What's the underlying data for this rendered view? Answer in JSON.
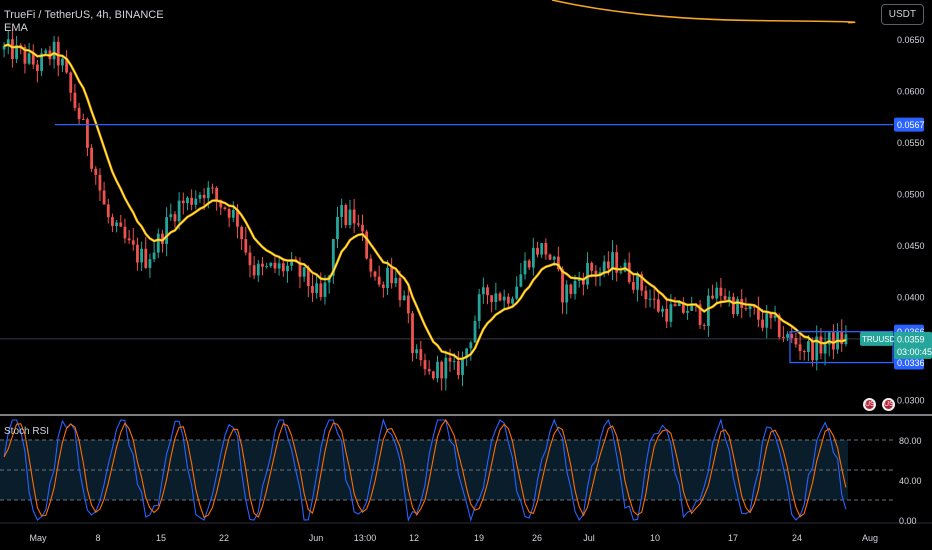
{
  "header": {
    "title": "TrueFi / TetherUS, 4h, BINANCE",
    "indicator": "EMA",
    "currency": "USDT",
    "flag1": "US",
    "flag2": "US"
  },
  "rsi_panel": {
    "title": "Stoch RSI"
  },
  "colors": {
    "up": "#26a69a",
    "down": "#ef5350",
    "ema": "#ffeb3b",
    "ema_long": "#f6a623",
    "level": "#2962ff",
    "last": "#26a69a",
    "k": "#2962ff",
    "d": "#ff6d00"
  },
  "chart_data": [
    {
      "type": "candlestick",
      "title": "TrueFi / TetherUS, 4h, BINANCE",
      "ylim": [
        0.0288,
        0.0688
      ],
      "y_ticks": [
        "0.0650",
        "0.0600",
        "0.0550",
        "0.0500",
        "0.0450",
        "0.0400",
        "0.0300"
      ],
      "x_ticks": [
        "May",
        "8",
        "15",
        "22",
        "Jun",
        "13:00",
        "12",
        "19",
        "26",
        "Jul",
        "10",
        "17",
        "24",
        "Aug"
      ],
      "close_path": [
        [
          0,
          0.064
        ],
        [
          2,
          0.0638
        ],
        [
          4,
          0.0636
        ],
        [
          6,
          0.0628
        ],
        [
          8,
          0.0624
        ],
        [
          10,
          0.0632
        ],
        [
          12,
          0.0637
        ],
        [
          14,
          0.0624
        ],
        [
          16,
          0.0596
        ],
        [
          18,
          0.0575
        ],
        [
          20,
          0.055
        ],
        [
          22,
          0.052
        ],
        [
          24,
          0.0487
        ],
        [
          26,
          0.0465
        ],
        [
          28,
          0.0459
        ],
        [
          30,
          0.0448
        ],
        [
          32,
          0.044
        ],
        [
          34,
          0.0437
        ],
        [
          36,
          0.0447
        ],
        [
          38,
          0.0462
        ],
        [
          40,
          0.0478
        ],
        [
          42,
          0.049
        ],
        [
          44,
          0.0492
        ],
        [
          46,
          0.0499
        ],
        [
          48,
          0.0504
        ],
        [
          50,
          0.0499
        ],
        [
          52,
          0.049
        ],
        [
          54,
          0.0485
        ],
        [
          56,
          0.0474
        ],
        [
          58,
          0.0446
        ],
        [
          60,
          0.0426
        ],
        [
          62,
          0.0424
        ],
        [
          64,
          0.0427
        ],
        [
          66,
          0.0428
        ],
        [
          68,
          0.0428
        ],
        [
          70,
          0.0425
        ],
        [
          72,
          0.0418
        ],
        [
          74,
          0.0408
        ],
        [
          76,
          0.0396
        ],
        [
          78,
          0.0419
        ],
        [
          80,
          0.0482
        ],
        [
          82,
          0.0476
        ],
        [
          84,
          0.0475
        ],
        [
          86,
          0.0456
        ],
        [
          88,
          0.043
        ],
        [
          90,
          0.0409
        ],
        [
          92,
          0.0428
        ],
        [
          94,
          0.0415
        ],
        [
          96,
          0.0395
        ],
        [
          98,
          0.0351
        ],
        [
          100,
          0.0328
        ],
        [
          102,
          0.0323
        ],
        [
          104,
          0.0329
        ],
        [
          106,
          0.0334
        ],
        [
          108,
          0.0327
        ],
        [
          110,
          0.0337
        ],
        [
          112,
          0.0364
        ],
        [
          114,
          0.0393
        ],
        [
          116,
          0.0404
        ],
        [
          118,
          0.0405
        ],
        [
          120,
          0.0398
        ],
        [
          122,
          0.0407
        ],
        [
          124,
          0.0422
        ],
        [
          126,
          0.0439
        ],
        [
          128,
          0.0447
        ],
        [
          130,
          0.0445
        ],
        [
          132,
          0.043
        ],
        [
          134,
          0.0404
        ],
        [
          136,
          0.0407
        ],
        [
          138,
          0.0417
        ],
        [
          140,
          0.0427
        ],
        [
          142,
          0.0424
        ],
        [
          144,
          0.0424
        ],
        [
          146,
          0.0434
        ],
        [
          148,
          0.0429
        ],
        [
          150,
          0.0422
        ],
        [
          152,
          0.0413
        ],
        [
          154,
          0.0404
        ],
        [
          156,
          0.0393
        ],
        [
          158,
          0.0386
        ],
        [
          160,
          0.0386
        ],
        [
          162,
          0.0385
        ],
        [
          164,
          0.0389
        ],
        [
          166,
          0.0385
        ],
        [
          168,
          0.0381
        ],
        [
          170,
          0.04
        ],
        [
          172,
          0.0405
        ],
        [
          174,
          0.0397
        ],
        [
          176,
          0.039
        ],
        [
          178,
          0.0385
        ],
        [
          180,
          0.0383
        ],
        [
          182,
          0.0376
        ],
        [
          184,
          0.0374
        ],
        [
          186,
          0.0368
        ],
        [
          188,
          0.0359
        ],
        [
          190,
          0.0355
        ],
        [
          192,
          0.035
        ],
        [
          194,
          0.0349
        ],
        [
          196,
          0.0352
        ],
        [
          198,
          0.0356
        ],
        [
          200,
          0.0358
        ],
        [
          202,
          0.0359
        ]
      ],
      "ema_long": {
        "start": [
          0.0688,
          0.0669
        ],
        "end": [
          0.0668,
          0.0666
        ]
      },
      "levels": [
        {
          "label": "0.0567",
          "value": 0.0567
        },
        {
          "label": "0.0366",
          "value": 0.0366
        },
        {
          "label": "0.0336",
          "value": 0.0336
        }
      ],
      "last_price": {
        "symbol": "TRUUSDT",
        "value": 0.0359,
        "label": "0.0359",
        "countdown": "03:00:45"
      }
    },
    {
      "type": "line",
      "title": "Stoch RSI",
      "ylim": [
        0,
        100
      ],
      "y_ticks": [
        "80.00",
        "40.00",
        "0.00"
      ],
      "bands": [
        80,
        50,
        20
      ],
      "series": [
        {
          "key": "K",
          "osc_seed": 7
        },
        {
          "key": "D",
          "osc_seed": 11
        }
      ]
    }
  ]
}
